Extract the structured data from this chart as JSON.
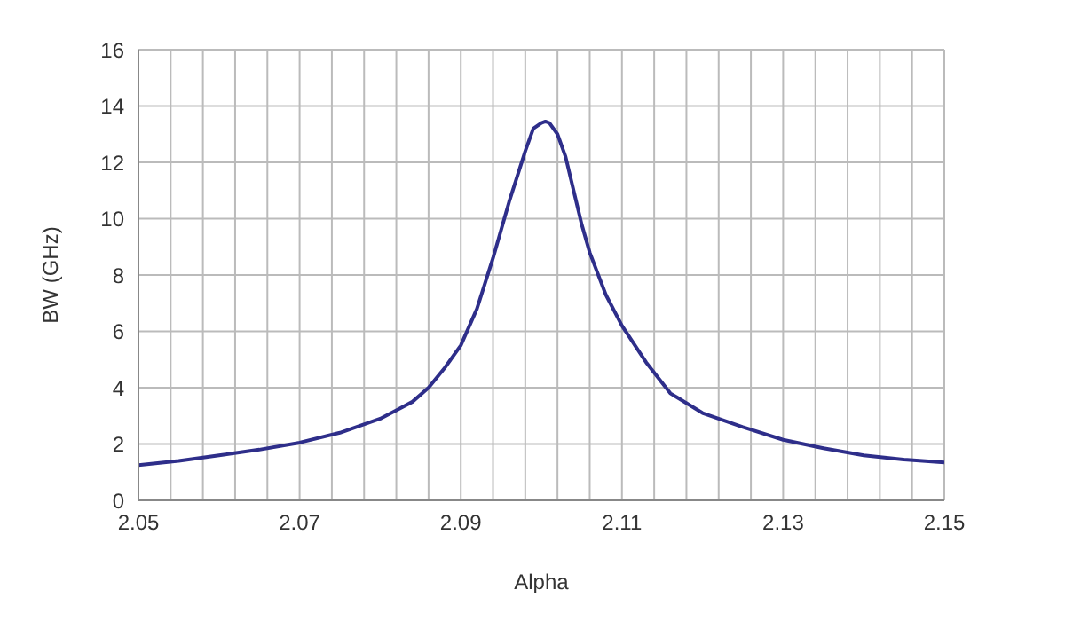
{
  "chart_data": {
    "type": "line",
    "xlabel": "Alpha",
    "ylabel": "BW (GHz)",
    "x": [
      2.05,
      2.055,
      2.06,
      2.065,
      2.07,
      2.075,
      2.08,
      2.082,
      2.084,
      2.086,
      2.088,
      2.09,
      2.092,
      2.094,
      2.096,
      2.098,
      2.099,
      2.1,
      2.1005,
      2.101,
      2.102,
      2.103,
      2.104,
      2.105,
      2.106,
      2.108,
      2.11,
      2.113,
      2.116,
      2.12,
      2.125,
      2.13,
      2.135,
      2.14,
      2.145,
      2.15
    ],
    "series": [
      {
        "color": "#2e2e8a",
        "values": [
          1.25,
          1.4,
          1.6,
          1.8,
          2.05,
          2.4,
          2.9,
          3.2,
          3.5,
          4.0,
          4.7,
          5.5,
          6.8,
          8.6,
          10.6,
          12.4,
          13.2,
          13.4,
          13.45,
          13.4,
          13.0,
          12.2,
          11.0,
          9.8,
          8.8,
          7.3,
          6.2,
          4.9,
          3.8,
          3.1,
          2.6,
          2.15,
          1.85,
          1.6,
          1.45,
          1.35
        ]
      }
    ],
    "xlim": [
      2.05,
      2.15
    ],
    "xticks": [
      2.05,
      {
        "value": 2.054,
        "label": null
      },
      {
        "value": 2.058,
        "label": null
      },
      {
        "value": 2.062,
        "label": null
      },
      {
        "value": 2.066,
        "label": null
      },
      2.07,
      {
        "value": 2.074,
        "label": null
      },
      {
        "value": 2.078,
        "label": null
      },
      {
        "value": 2.082,
        "label": null
      },
      {
        "value": 2.086,
        "label": null
      },
      2.09,
      {
        "value": 2.094,
        "label": null
      },
      {
        "value": 2.098,
        "label": null
      },
      {
        "value": 2.102,
        "label": null
      },
      {
        "value": 2.106,
        "label": null
      },
      2.11,
      {
        "value": 2.114,
        "label": null
      },
      {
        "value": 2.118,
        "label": null
      },
      {
        "value": 2.122,
        "label": null
      },
      {
        "value": 2.126,
        "label": null
      },
      2.13,
      {
        "value": 2.134,
        "label": null
      },
      {
        "value": 2.138,
        "label": null
      },
      {
        "value": 2.142,
        "label": null
      },
      {
        "value": 2.146,
        "label": null
      },
      2.15
    ],
    "ylim": [
      0,
      16
    ],
    "yticks": [
      0,
      2,
      4,
      6,
      8,
      10,
      12,
      14,
      16
    ],
    "grid": true,
    "legend": false,
    "marker": "none",
    "line_style": "solid"
  }
}
